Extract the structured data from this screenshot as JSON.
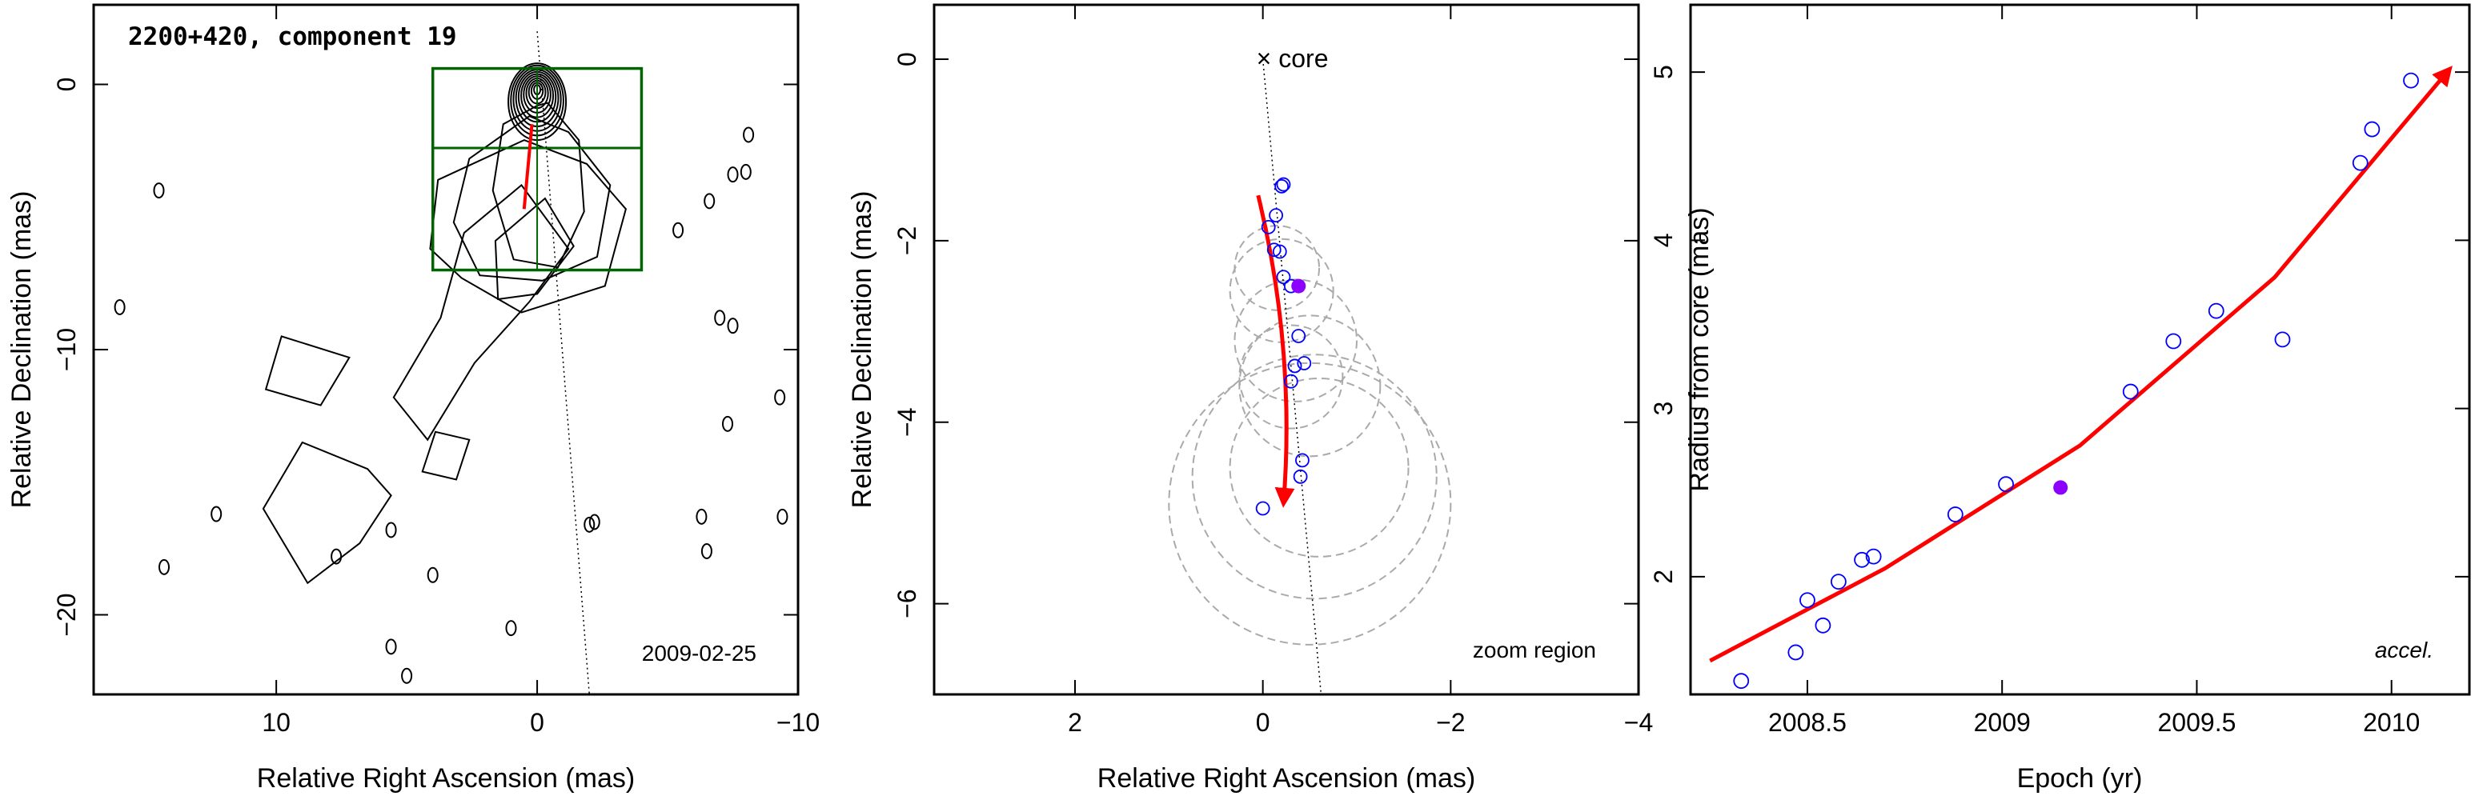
{
  "colors": {
    "fit": "#ff0000",
    "model_point": "#0000ff",
    "highlight": "#8b00ff",
    "box": "#006400",
    "error_circle": "#aaaaaa"
  },
  "chart_data": [
    {
      "type": "contour",
      "title": "2200+420, component 19",
      "xlabel": "Relative Right Ascension (mas)",
      "ylabel": "Relative Declination (mas)",
      "xlim": [
        17,
        -10
      ],
      "ylim": [
        -23,
        3
      ],
      "xticks": [
        "10",
        "0",
        "−10"
      ],
      "xtick_values": [
        10,
        0,
        -10
      ],
      "yticks": [
        "0",
        "−10",
        "−20"
      ],
      "ytick_values": [
        0,
        -10,
        -20
      ],
      "annotation": "2009-02-25",
      "zoom_box": {
        "x_range": [
          4,
          -4
        ],
        "y_range": [
          -7,
          0.6
        ],
        "divider_y": -2.4
      },
      "ridge_line": {
        "x": [
          0,
          -2
        ],
        "y": [
          2,
          -23
        ]
      },
      "fit_arrow": {
        "x": [
          0.2,
          0.5
        ],
        "y": [
          -1.5,
          -4.7
        ]
      }
    },
    {
      "type": "scatter",
      "xlabel": "Relative Right Ascension (mas)",
      "ylabel": "Relative Declination (mas)",
      "xlim": [
        3.5,
        -4
      ],
      "ylim": [
        -7,
        0.6
      ],
      "xticks": [
        "2",
        "0",
        "−2",
        "−4"
      ],
      "xtick_values": [
        2,
        0,
        -2,
        -4
      ],
      "yticks": [
        "0",
        "−2",
        "−4",
        "−6"
      ],
      "ytick_values": [
        0,
        -2,
        -4,
        -6
      ],
      "core_label": "core",
      "core_marker": "×",
      "annotation": "zoom region",
      "points": [
        {
          "x": -0.2,
          "y": -1.4
        },
        {
          "x": -0.22,
          "y": -1.38
        },
        {
          "x": -0.14,
          "y": -1.72
        },
        {
          "x": -0.06,
          "y": -1.85
        },
        {
          "x": -0.12,
          "y": -2.1
        },
        {
          "x": -0.18,
          "y": -2.12
        },
        {
          "x": -0.22,
          "y": -2.4
        },
        {
          "x": -0.3,
          "y": -2.5
        },
        {
          "x": -0.38,
          "y": -3.05
        },
        {
          "x": -0.44,
          "y": -3.35
        },
        {
          "x": -0.34,
          "y": -3.38
        },
        {
          "x": -0.3,
          "y": -3.55
        },
        {
          "x": -0.42,
          "y": -4.42
        },
        {
          "x": -0.4,
          "y": -4.6
        },
        {
          "x": 0.0,
          "y": -4.95
        }
      ],
      "highlight_point": {
        "x": -0.38,
        "y": -2.5
      },
      "error_circles": [
        {
          "x": -0.15,
          "y": -2.3,
          "r": 0.45
        },
        {
          "x": -0.2,
          "y": -2.55,
          "r": 0.55
        },
        {
          "x": -0.35,
          "y": -3.1,
          "r": 0.65
        },
        {
          "x": -0.5,
          "y": -3.6,
          "r": 0.75
        },
        {
          "x": -0.3,
          "y": -3.5,
          "r": 0.55
        },
        {
          "x": -0.55,
          "y": -4.6,
          "r": 1.3
        },
        {
          "x": -0.5,
          "y": -4.9,
          "r": 1.5
        },
        {
          "x": -0.6,
          "y": -4.5,
          "r": 0.95
        }
      ],
      "ridge_line": {
        "x": [
          0,
          -0.62
        ],
        "y": [
          0,
          -7
        ]
      },
      "fit_arrow": {
        "x": [
          0.05,
          -0.35,
          -0.22
        ],
        "y": [
          -1.5,
          -3.2,
          -4.9
        ]
      }
    },
    {
      "type": "scatter",
      "xlabel": "Epoch (yr)",
      "ylabel": "Radius from core (mas)",
      "xlim": [
        2008.2,
        2010.2
      ],
      "ylim": [
        1.3,
        5.4
      ],
      "xticks": [
        "2008.5",
        "2009",
        "2009.5",
        "2010"
      ],
      "xtick_values": [
        2008.5,
        2009,
        2009.5,
        2010
      ],
      "yticks": [
        "2",
        "3",
        "4",
        "5"
      ],
      "ytick_values": [
        2,
        3,
        4,
        5
      ],
      "annotation": "accel.",
      "points": [
        {
          "x": 2008.33,
          "y": 1.38
        },
        {
          "x": 2008.47,
          "y": 1.55
        },
        {
          "x": 2008.5,
          "y": 1.86
        },
        {
          "x": 2008.54,
          "y": 1.71
        },
        {
          "x": 2008.58,
          "y": 1.97
        },
        {
          "x": 2008.64,
          "y": 2.1
        },
        {
          "x": 2008.67,
          "y": 2.12
        },
        {
          "x": 2008.88,
          "y": 2.37
        },
        {
          "x": 2009.01,
          "y": 2.55
        },
        {
          "x": 2009.33,
          "y": 3.1
        },
        {
          "x": 2009.44,
          "y": 3.4
        },
        {
          "x": 2009.55,
          "y": 3.58
        },
        {
          "x": 2009.72,
          "y": 3.41
        },
        {
          "x": 2009.92,
          "y": 4.46
        },
        {
          "x": 2009.95,
          "y": 4.66
        },
        {
          "x": 2010.05,
          "y": 4.95
        }
      ],
      "highlight_point": {
        "x": 2009.15,
        "y": 2.53
      },
      "fit": {
        "x": [
          2008.25,
          2008.7,
          2009.2,
          2009.7,
          2010.15
        ],
        "y": [
          1.5,
          2.05,
          2.78,
          3.78,
          5.02
        ]
      }
    }
  ]
}
